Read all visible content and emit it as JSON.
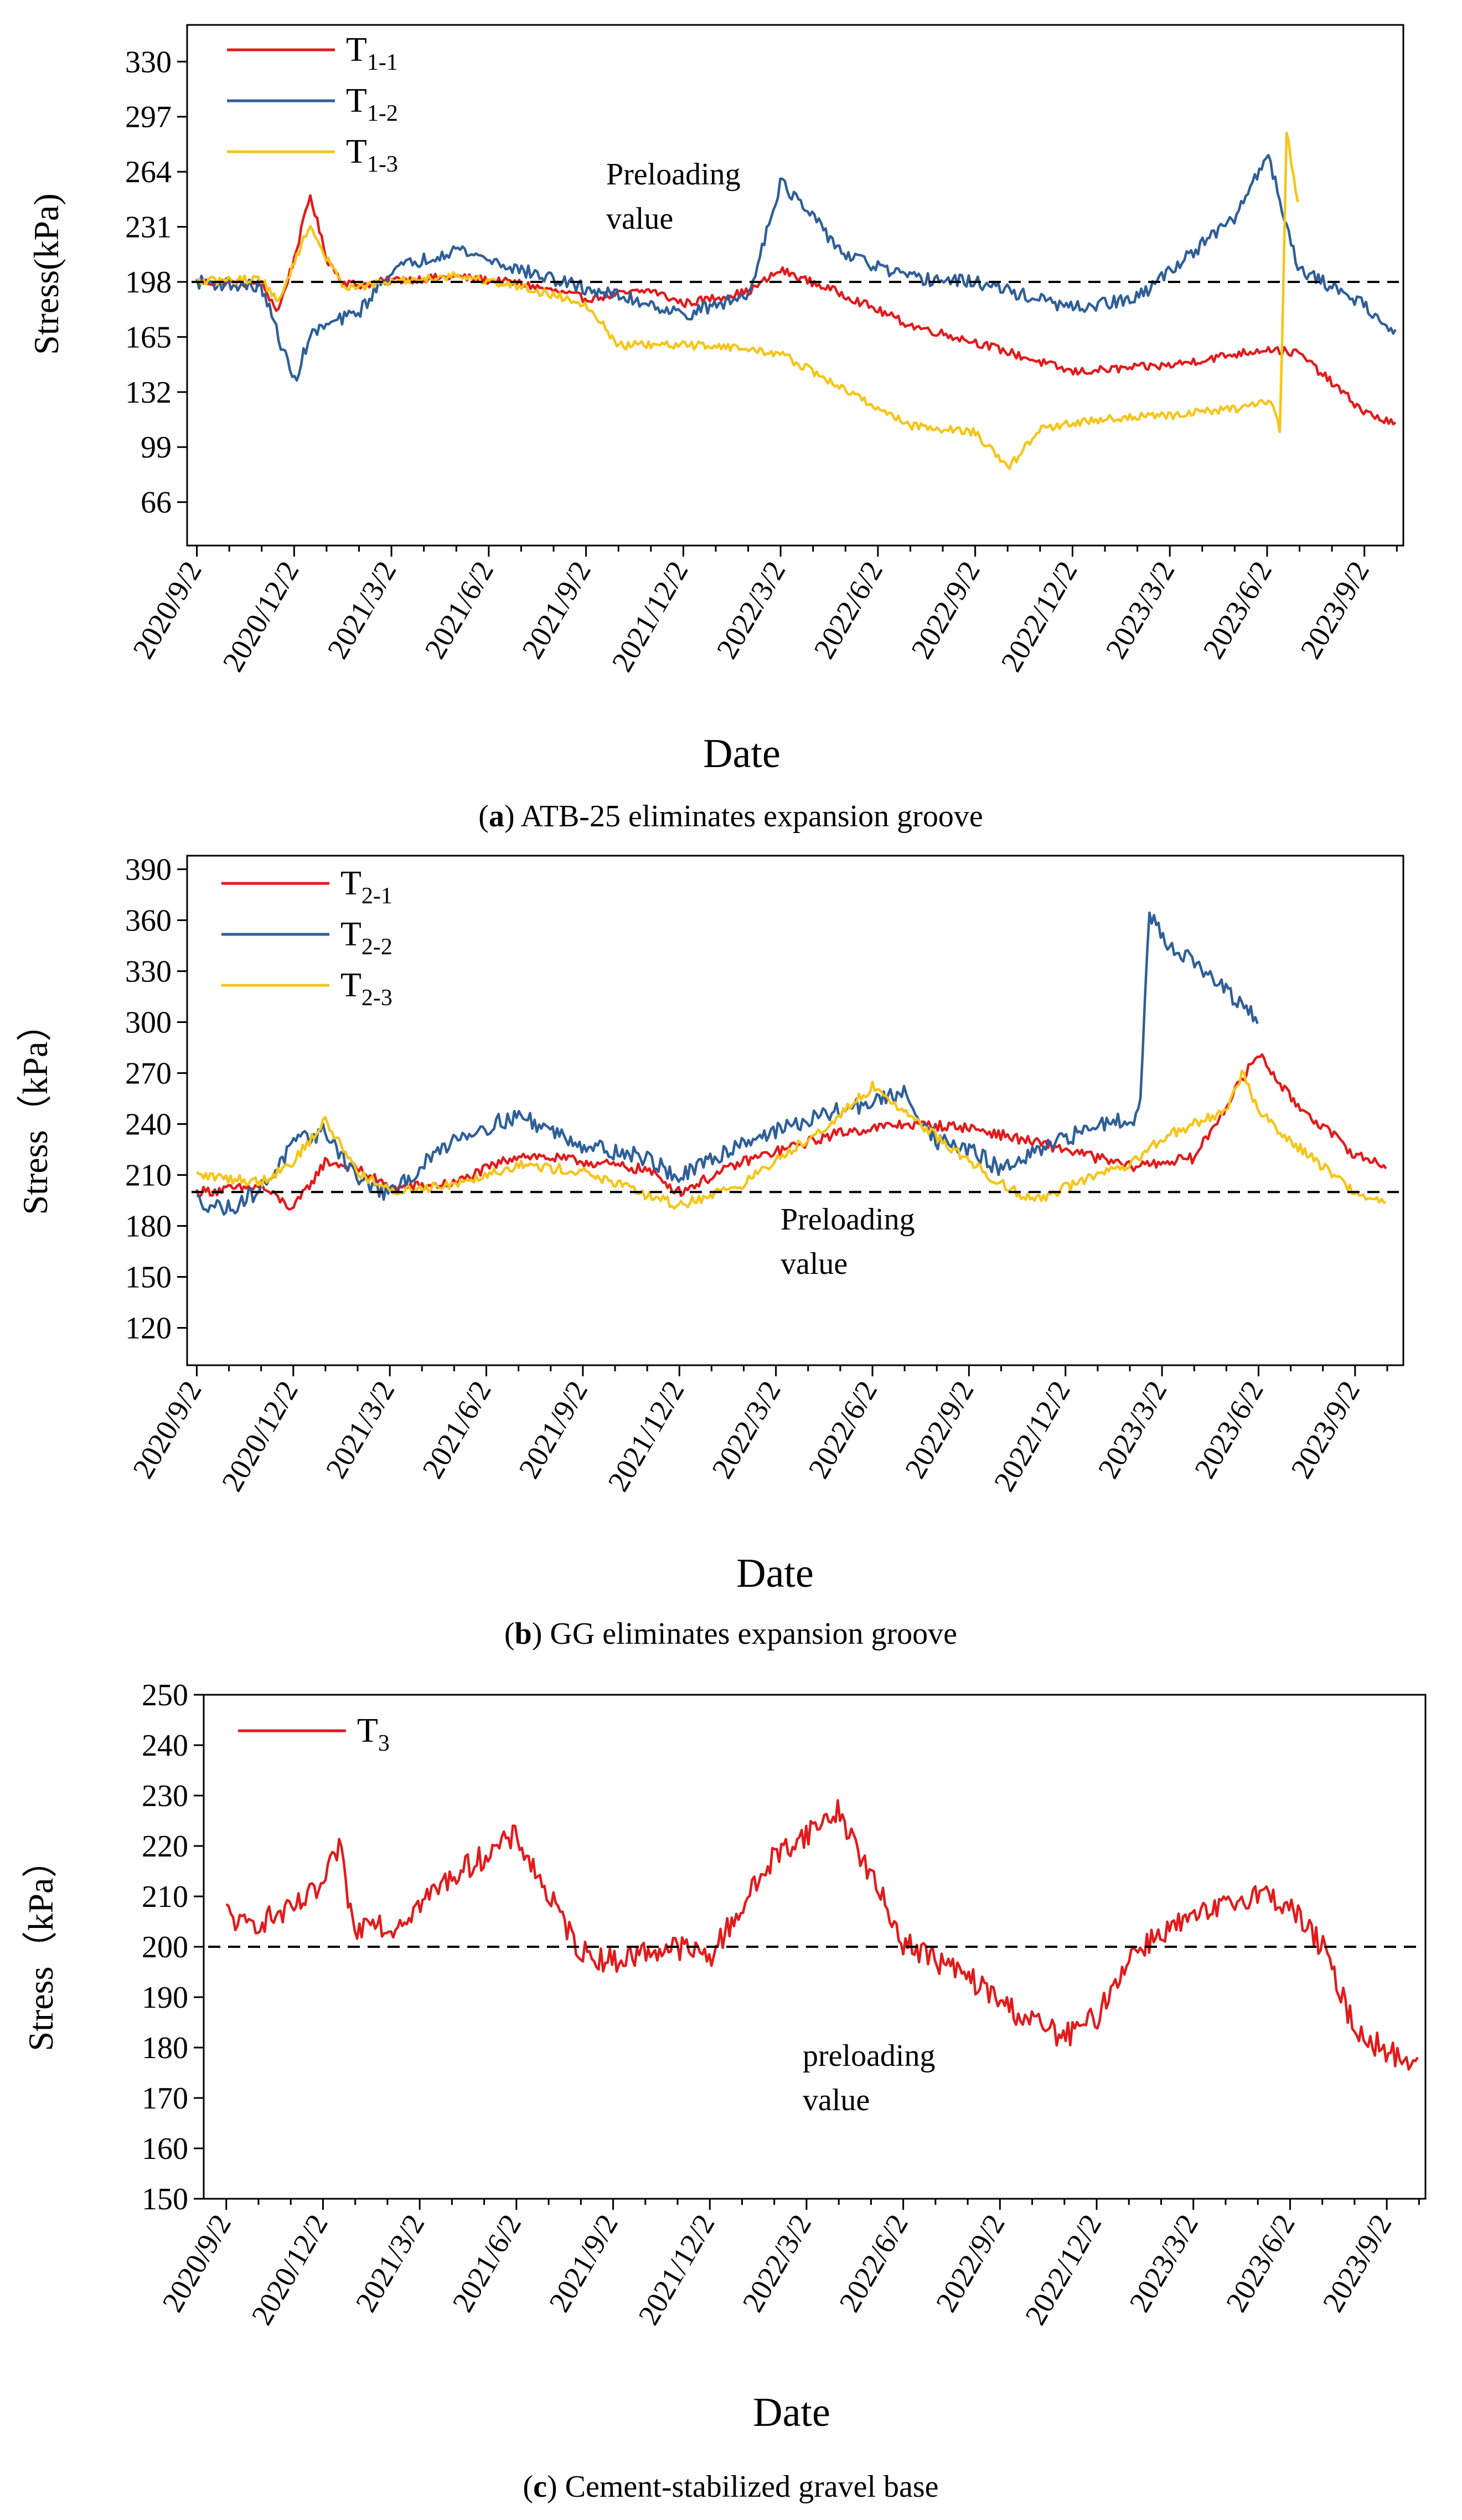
{
  "chart_data": [
    {
      "type": "line",
      "panel": "(a)",
      "caption_bold": "a",
      "caption_text": "ATB-25 eliminates expansion groove",
      "ylabel": "Stress(kPa)",
      "xlabel": "Date",
      "ylim": [
        40,
        352
      ],
      "yticks": [
        "66",
        "99",
        "132",
        "165",
        "198",
        "231",
        "264",
        "297",
        "330"
      ],
      "x_ticks": [
        "2020/9/2",
        "2020/12/2",
        "2021/3/2",
        "2021/6/2",
        "2021/9/2",
        "2021/12/2",
        "2022/3/2",
        "2022/6/2",
        "2022/9/2",
        "2022/12/2",
        "2023/3/2",
        "2023/6/2",
        "2023/9/2"
      ],
      "x_unit": "months since 2020/9/2",
      "xlim": [
        -0.3,
        37.2
      ],
      "preload": 198,
      "preload_label": [
        "Preloading",
        "value"
      ],
      "legend": [
        {
          "main": "T",
          "sub": "1-1",
          "color": "#e31a1c"
        },
        {
          "main": "T",
          "sub": "1-2",
          "color": "#2f5f98"
        },
        {
          "main": "T",
          "sub": "1-3",
          "color": "#f5c518"
        }
      ],
      "series": [
        {
          "name": "T1-1",
          "color": "#e31a1c",
          "noise": 2.5,
          "x": [
            0,
            2,
            2.5,
            3,
            3.5,
            4,
            4.5,
            5,
            6,
            8,
            10,
            12,
            14,
            15,
            17,
            18,
            20,
            22,
            24,
            27,
            30,
            33,
            34,
            36,
            37
          ],
          "y": [
            198,
            197,
            180,
            212,
            250,
            212,
            198,
            196,
            199,
            201,
            197,
            188,
            193,
            185,
            192,
            205,
            190,
            172,
            162,
            144,
            148,
            158,
            155,
            120,
            112
          ]
        },
        {
          "name": "T1-2",
          "color": "#2f5f98",
          "noise": 4,
          "x": [
            0,
            2,
            3,
            3.5,
            4,
            5,
            6,
            8,
            10,
            12,
            14,
            15,
            17,
            18,
            20,
            22,
            24,
            27,
            29,
            30,
            32,
            33,
            34,
            36,
            37
          ],
          "y": [
            198,
            195,
            138,
            166,
            172,
            180,
            205,
            218,
            205,
            194,
            185,
            178,
            190,
            258,
            214,
            200,
            198,
            182,
            188,
            205,
            236,
            275,
            205,
            185,
            165
          ]
        },
        {
          "name": "T1-3",
          "color": "#f5c518",
          "noise": 2.5,
          "x": [
            0,
            2,
            2.5,
            3,
            3.5,
            4,
            4.5,
            5,
            6,
            8,
            10,
            12,
            13,
            16,
            18,
            20,
            22,
            23,
            24,
            25,
            26,
            28,
            30,
            32,
            33.2,
            33.4,
            33.6,
            34
          ],
          "y": [
            198,
            200,
            185,
            210,
            232,
            212,
            196,
            195,
            198,
            202,
            195,
            185,
            160,
            160,
            155,
            133,
            112,
            110,
            108,
            86,
            110,
            116,
            118,
            122,
            126,
            106,
            288,
            240
          ]
        }
      ]
    },
    {
      "type": "line",
      "panel": "(b)",
      "caption_bold": "b",
      "caption_text": "GG eliminates expansion groove",
      "ylabel": "Stress（kPa）",
      "xlabel": "Date",
      "ylim": [
        98,
        398
      ],
      "yticks": [
        "120",
        "150",
        "180",
        "210",
        "240",
        "270",
        "300",
        "330",
        "360",
        "390"
      ],
      "x_ticks": [
        "2020/9/2",
        "2020/12/2",
        "2021/3/2",
        "2021/6/2",
        "2021/9/2",
        "2021/12/2",
        "2022/3/2",
        "2022/6/2",
        "2022/9/2",
        "2022/12/2",
        "2023/3/2",
        "2023/6/2",
        "2023/9/2"
      ],
      "x_unit": "months since 2020/9/2",
      "xlim": [
        -0.3,
        37.5
      ],
      "preload": 200,
      "preload_label": [
        "Preloading",
        "value"
      ],
      "legend": [
        {
          "main": "T",
          "sub": "2-1",
          "color": "#e31a1c"
        },
        {
          "main": "T",
          "sub": "2-2",
          "color": "#2f5f98"
        },
        {
          "main": "T",
          "sub": "2-3",
          "color": "#f5c518"
        }
      ],
      "series": [
        {
          "name": "T2-1",
          "color": "#e31a1c",
          "noise": 3,
          "x": [
            0,
            2,
            3,
            4,
            5,
            6,
            8,
            10,
            12,
            14,
            15,
            17,
            20,
            22,
            24,
            27,
            29,
            31,
            33,
            34,
            36,
            37
          ],
          "y": [
            200,
            203,
            190,
            218,
            214,
            202,
            205,
            222,
            218,
            213,
            200,
            218,
            235,
            240,
            238,
            225,
            215,
            220,
            282,
            255,
            222,
            215
          ]
        },
        {
          "name": "T2-2",
          "color": "#2f5f98",
          "noise": 5,
          "x": [
            0,
            1,
            2,
            3,
            4,
            5,
            6,
            8,
            10,
            12,
            14,
            15,
            17,
            20,
            22,
            23,
            24,
            25,
            26,
            28,
            29.3,
            29.6,
            30,
            31,
            32,
            33
          ],
          "y": [
            195,
            190,
            202,
            228,
            236,
            208,
            198,
            232,
            245,
            228,
            220,
            208,
            230,
            248,
            258,
            230,
            225,
            213,
            222,
            240,
            245,
            365,
            350,
            335,
            318,
            300
          ]
        },
        {
          "name": "T2-3",
          "color": "#f5c518",
          "noise": 3,
          "x": [
            0,
            2,
            3,
            4,
            5,
            6,
            8,
            10,
            12,
            14,
            15,
            17,
            20,
            21,
            24,
            25,
            26,
            28,
            29,
            30,
            32,
            32.5,
            33,
            34,
            36,
            37
          ],
          "y": [
            210,
            206,
            218,
            242,
            212,
            200,
            205,
            216,
            212,
            198,
            192,
            205,
            245,
            262,
            218,
            205,
            195,
            210,
            215,
            232,
            248,
            270,
            248,
            230,
            200,
            193
          ]
        }
      ]
    },
    {
      "type": "line",
      "panel": "(c)",
      "caption_bold": "c",
      "caption_text": "Cement-stabilized gravel base",
      "ylabel": "Stress（kPa）",
      "xlabel": "Date",
      "ylim": [
        150,
        250
      ],
      "yticks": [
        "150",
        "160",
        "170",
        "180",
        "190",
        "200",
        "210",
        "220",
        "230",
        "240",
        "250"
      ],
      "x_ticks": [
        "2020/9/2",
        "2020/12/2",
        "2021/3/2",
        "2021/6/2",
        "2021/9/2",
        "2021/12/2",
        "2022/3/2",
        "2022/6/2",
        "2022/9/2",
        "2022/12/2",
        "2023/3/2",
        "2023/6/2",
        "2023/9/2"
      ],
      "x_unit": "months since 2020/9/2",
      "xlim": [
        -0.7,
        37.2
      ],
      "preload": 200,
      "preload_label": [
        "preloading",
        "value"
      ],
      "legend": [
        {
          "main": "T",
          "sub": "3",
          "color": "#e31a1c"
        }
      ],
      "series": [
        {
          "name": "T3",
          "color": "#e31a1c",
          "noise": 2.5,
          "x": [
            0,
            0.5,
            2,
            3,
            3.5,
            4,
            4.5,
            5,
            7,
            9,
            10,
            11,
            12,
            13,
            14,
            15,
            17,
            19,
            20,
            21,
            23,
            24.5,
            26,
            27,
            28,
            29,
            31,
            32,
            33,
            34,
            35,
            36,
            37
          ],
          "y": [
            207,
            204,
            207,
            212,
            220,
            202,
            207,
            203,
            214,
            222,
            210,
            199,
            197,
            199,
            200,
            198,
            218,
            227,
            214,
            201,
            194,
            187,
            182,
            186,
            198,
            203,
            208,
            211,
            208,
            200,
            184,
            179,
            177
          ]
        }
      ]
    }
  ]
}
